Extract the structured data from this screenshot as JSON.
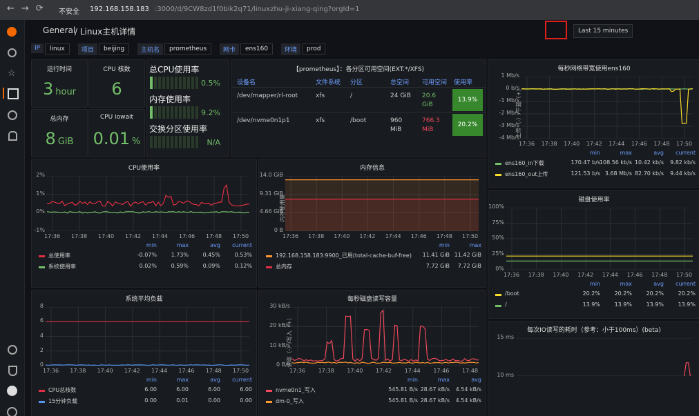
{
  "browser": {
    "security": "不安全",
    "url_host": "192.168.158.183",
    "url_rest": ":3000/d/9CW8zd1f0bik2q71/linuxzhu-ji-xiang-qing?orgId=1"
  },
  "header": {
    "breadcrumb_root": "General",
    "breadcrumb_title": "/ Linux主机详情",
    "time_range": "Last 15 minutes"
  },
  "variables": [
    {
      "label": "IP",
      "value": "linux"
    },
    {
      "label": "项目",
      "value": "beijing"
    },
    {
      "label": "主机名",
      "value": "prometheus"
    },
    {
      "label": "网卡",
      "value": "ens160"
    },
    {
      "label": "环境",
      "value": "prod"
    }
  ],
  "stats": [
    {
      "title": "运行时间",
      "value": "3",
      "unit": "hour"
    },
    {
      "title": "CPU 核数",
      "value": "6"
    },
    {
      "title": "总内存",
      "value": "8",
      "unit": "GiB"
    },
    {
      "title": "CPU iowait",
      "value": "0.01",
      "unit": "%"
    }
  ],
  "gauges": [
    {
      "title": "总CPU使用率",
      "value": "0.5%"
    },
    {
      "title": "内存使用率",
      "value": "9.2%"
    },
    {
      "title": "交换分区使用率",
      "value": "N/A"
    }
  ],
  "table": {
    "title": "【prometheus】：各分区可用空间(EXT.*/XFS)",
    "headers": [
      "设备名",
      "文件系统",
      "分区",
      "总空间",
      "可用空间",
      "使用率"
    ],
    "rows": [
      [
        "/dev/mapper/rl-root",
        "xfs",
        "/",
        "24 GiB",
        "20.6 GiB",
        "13.9%"
      ],
      [
        "/dev/nvme0n1p1",
        "xfs",
        "/boot",
        "960 MiB",
        "766.3 MiB",
        "20.2%"
      ]
    ]
  },
  "graphs": [
    {
      "title": "CPU使用率",
      "yticks": [
        "2%",
        "1%",
        "0%",
        "-1%"
      ],
      "xticks": [
        "17:36",
        "17:38",
        "17:40",
        "17:42",
        "17:44",
        "17:46",
        "17:48",
        "17:50"
      ],
      "legend_headers": [
        "min",
        "max",
        "avg",
        "current"
      ],
      "legend": [
        {
          "name": "总使用率",
          "color": "#e02f44",
          "values": [
            "-0.07%",
            "1.73%",
            "0.45%",
            "0.53%"
          ]
        },
        {
          "name": "系统使用率",
          "color": "#73bf69",
          "values": [
            "0.02%",
            "0.59%",
            "0.09%",
            "0.12%"
          ]
        }
      ]
    },
    {
      "title": "内存信息",
      "y_label": "内存使用量",
      "yticks": [
        "14.0 GiB",
        "9.31 GiB",
        "4.66 GiB",
        "0 B"
      ],
      "xticks": [
        "17:36",
        "17:38",
        "17:40",
        "17:42",
        "17:44",
        "17:46",
        "17:48",
        "17:50"
      ],
      "legend_headers": [
        "min",
        "max"
      ],
      "legend": [
        {
          "name": "192.168.158.183:9900_已用(total-cache-buf-free)",
          "color": "#ff9830",
          "values": [
            "11.41 GiB",
            "11.42 GiB"
          ]
        },
        {
          "name": "总内存",
          "color": "#e02f44",
          "values": [
            "7.72 GiB",
            "7.72 GiB"
          ]
        }
      ]
    },
    {
      "title": "每秒网络带宽使用ens160",
      "y_label": "上传（-）/下载（+）",
      "yticks": [
        "1 Mb/s",
        "0 b/s",
        "-1 Mb/s",
        "-2 Mb/s",
        "-3 Mb/s",
        "-4 Mb/s"
      ],
      "xticks": [
        "17:36",
        "17:38",
        "17:40",
        "17:42",
        "17:44",
        "17:46",
        "17:48",
        "17:50"
      ],
      "legend_headers": [
        "min",
        "max",
        "avg",
        "current"
      ],
      "legend": [
        {
          "name": "ens160_in下载",
          "color": "#73bf69",
          "values": [
            "170.47 b/s",
            "108.56 kb/s",
            "10.42 kb/s",
            "9.82 kb/s"
          ]
        },
        {
          "name": "ens160_out上传",
          "color": "#fade2a",
          "values": [
            "121.53 b/s",
            "3.68 Mb/s",
            "82.70 kb/s",
            "9.44 kb/s"
          ]
        }
      ]
    },
    {
      "title": "磁盘使用率",
      "yticks": [
        "100%",
        "75%",
        "50%",
        "25%",
        "0%"
      ],
      "xticks": [
        "17:36",
        "17:38",
        "17:40",
        "17:42",
        "17:44",
        "17:46",
        "17:48",
        "17:50"
      ],
      "legend_headers": [
        "min",
        "max",
        "avg",
        "current"
      ],
      "legend": [
        {
          "name": "/boot",
          "color": "#fade2a",
          "values": [
            "20.2%",
            "20.2%",
            "20.2%",
            "20.2%"
          ]
        },
        {
          "name": "/",
          "color": "#73bf69",
          "values": [
            "13.9%",
            "13.9%",
            "13.9%",
            "13.9%"
          ]
        }
      ]
    },
    {
      "title": "系统平均负载",
      "yticks": [
        "8",
        "6",
        "4",
        "2",
        "0"
      ],
      "xticks": [
        "17:36",
        "17:38",
        "17:40",
        "17:42",
        "17:44",
        "17:46",
        "17:48",
        "17:50"
      ],
      "legend_headers": [
        "min",
        "max",
        "avg",
        "current"
      ],
      "legend": [
        {
          "name": "CPU总核数",
          "color": "#e02f44",
          "values": [
            "6.00",
            "6.00",
            "6.00",
            "6.00"
          ]
        },
        {
          "name": "15分钟负载",
          "color": "#5794f2",
          "values": [
            "0.00",
            "0.01",
            "0.00",
            "0.00"
          ]
        }
      ]
    },
    {
      "title": "每秒磁盘读写容量",
      "y_label": "读取（-）/写入（+）",
      "yticks": [
        "30 kB/s",
        "20 kB/s",
        "10 kB/s",
        "0 B/s"
      ],
      "xticks": [
        "17:36",
        "17:38",
        "17:40",
        "17:42",
        "17:44",
        "17:46",
        "17:48"
      ],
      "legend_headers": [
        "min",
        "max",
        "avg"
      ],
      "legend": [
        {
          "name": "nvme0n1_写入",
          "color": "#f2495c",
          "values": [
            "545.81 B/s",
            "28.67 kB/s",
            "4.54 kB/s"
          ]
        },
        {
          "name": "dm-0_写入",
          "color": "#ff9830",
          "values": [
            "545.81 B/s",
            "28.67 kB/s",
            "4.54 kB/s"
          ]
        }
      ]
    },
    {
      "title": "每次IO读写的耗时（参考：小于100ms）(beta)",
      "yticks": [
        "15 ms",
        "10 ms"
      ],
      "xticks": [],
      "legend_headers": [],
      "legend": [
        {
          "name": null,
          "color": "#f2495c",
          "values": []
        }
      ]
    }
  ]
}
